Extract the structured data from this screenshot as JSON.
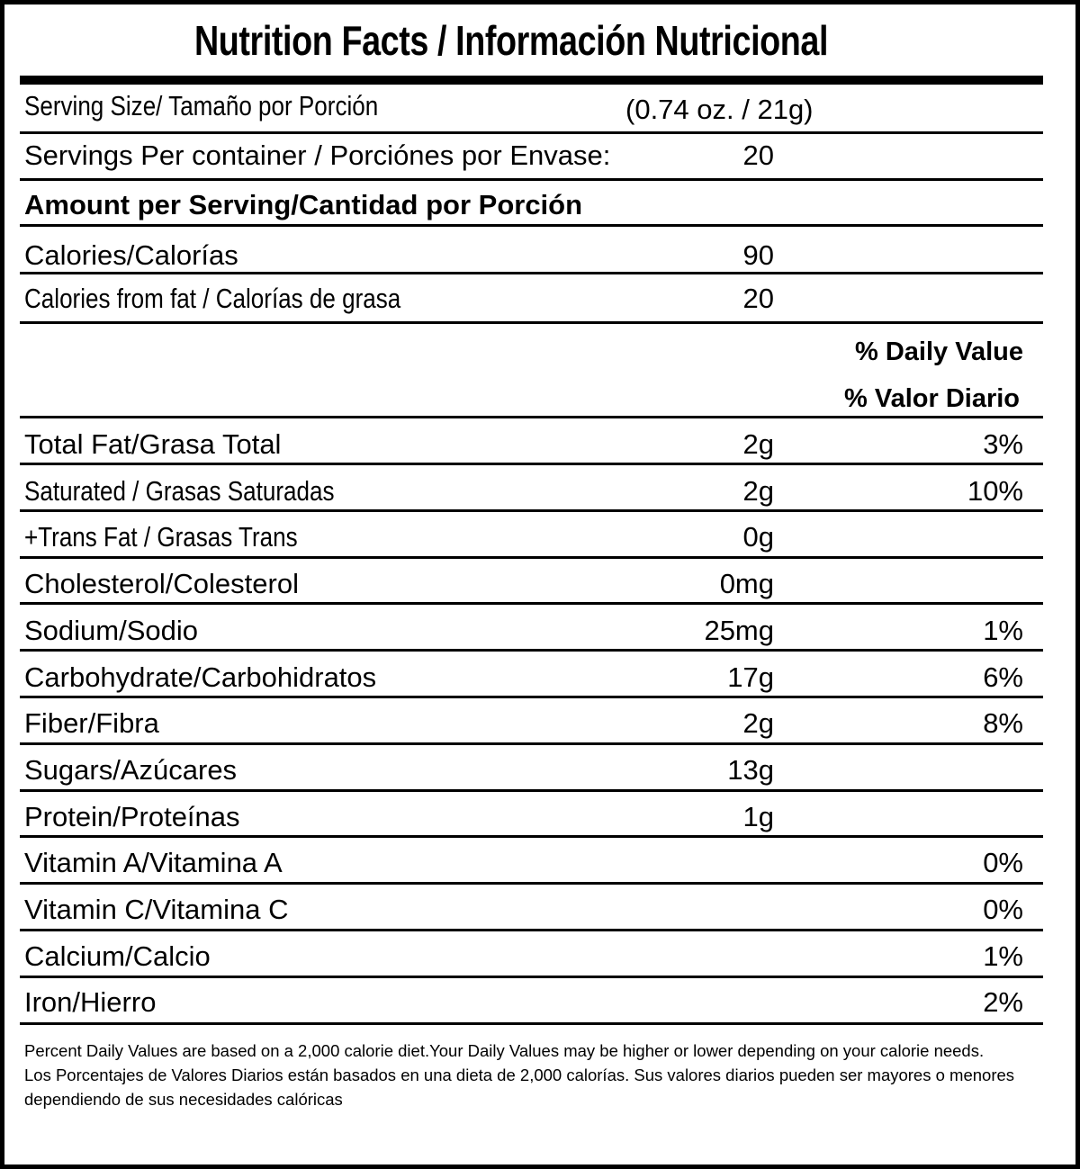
{
  "title": "Nutrition Facts / Información Nutricional",
  "serving_size": {
    "label": "Serving Size/ Tamaño por Porción",
    "value": "(0.74 oz. / 21g)"
  },
  "servings_per_container": {
    "label": "Servings Per container / Porciónes por Envase:",
    "value": "20"
  },
  "amount_header": "Amount per Serving/Cantidad por Porción",
  "calories": {
    "label": "Calories/Calorías",
    "value": "90"
  },
  "calories_fat": {
    "label": "Calories from fat / Calorías de grasa",
    "value": "20"
  },
  "dv_header": {
    "line1": "% Daily Value",
    "line2": "% Valor Diario"
  },
  "nutrients": [
    {
      "label": "Total Fat/Grasa Total",
      "amount": "2g",
      "dv": "3%"
    },
    {
      "label": "Saturated / Grasas Saturadas",
      "amount": "2g",
      "dv": "10%"
    },
    {
      "label": "+Trans Fat / Grasas Trans",
      "amount": "0g",
      "dv": ""
    },
    {
      "label": "Cholesterol/Colesterol",
      "amount": "0mg",
      "dv": ""
    },
    {
      "label": "Sodium/Sodio",
      "amount": "25mg",
      "dv": "1%"
    },
    {
      "label": "Carbohydrate/Carbohidratos",
      "amount": "17g",
      "dv": "6%"
    },
    {
      "label": "Fiber/Fibra",
      "amount": "2g",
      "dv": "8%"
    },
    {
      "label": "Sugars/Azúcares",
      "amount": "13g",
      "dv": ""
    },
    {
      "label": "Protein/Proteínas",
      "amount": "1g",
      "dv": ""
    },
    {
      "label": "Vitamin A/Vitamina A",
      "amount": "",
      "dv": "0%"
    },
    {
      "label": "Vitamin C/Vitamina C",
      "amount": "",
      "dv": "0%"
    },
    {
      "label": "Calcium/Calcio",
      "amount": "",
      "dv": "1%"
    },
    {
      "label": "Iron/Hierro",
      "amount": "",
      "dv": "2%"
    }
  ],
  "footer": {
    "english": "Percent Daily Values are based on a 2,000 calorie diet.Your Daily Values may be higher or lower depending on your calorie needs.",
    "spanish": "Los Porcentajes de Valores Diarios están basados en una dieta de 2,000 calorías. Sus valores diarios pueden ser mayores o menores dependiendo de sus necesidades calóricas"
  }
}
